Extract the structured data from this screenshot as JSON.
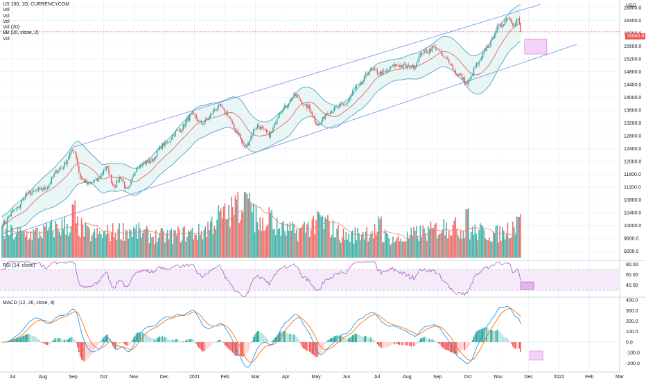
{
  "legend": {
    "symbol": "US 100, 1D, CURRENCYCOM",
    "vol_lines": [
      "Vol",
      "Vol",
      "Vol",
      "Vol (20)",
      "BB (20, close, 2)",
      "Vol"
    ]
  },
  "price_tag": "16045.8",
  "currency": "USD",
  "rsi_label": "RSI (14, close)",
  "macd_label": "MACD (12, 26, close, 9)",
  "colors": {
    "up": "#26a69a",
    "down": "#ef5350",
    "bb_fill": "#e0f2f1",
    "bb_line": "#4aa5b8",
    "channel": "#7f97f5",
    "rsi": "#a35ac8",
    "macd": "#2196f3",
    "signal": "#ff6d00"
  },
  "chart_data": [
    {
      "type": "candlestick",
      "title": "US 100, 1D, CURRENCYCOM",
      "ylabel": "USD",
      "yticks": [
        9200,
        9600,
        10000,
        10400,
        10800,
        11200,
        11600,
        12000,
        12400,
        12800,
        13200,
        13600,
        14000,
        14400,
        14800,
        15200,
        15600,
        16000,
        16400,
        16800
      ],
      "ylim": [
        9000,
        16950
      ],
      "x_ticks": [
        "Jul",
        "Aug",
        "Sep",
        "Oct",
        "Nov",
        "Dec",
        "2021",
        "Feb",
        "Mar",
        "Apr",
        "May",
        "Jun",
        "Jul",
        "Aug",
        "Sep",
        "Oct",
        "Nov",
        "Dec",
        "2022",
        "Feb",
        "Mar"
      ],
      "price_anchors": [
        [
          0,
          10050
        ],
        [
          10,
          10500
        ],
        [
          20,
          11000
        ],
        [
          32,
          11150
        ],
        [
          45,
          11800
        ],
        [
          55,
          12350
        ],
        [
          61,
          11450
        ],
        [
          66,
          11300
        ],
        [
          72,
          11400
        ],
        [
          80,
          11800
        ],
        [
          86,
          11250
        ],
        [
          91,
          11500
        ],
        [
          96,
          11100
        ],
        [
          104,
          11850
        ],
        [
          113,
          12000
        ],
        [
          125,
          12550
        ],
        [
          135,
          12950
        ],
        [
          146,
          13450
        ],
        [
          153,
          13200
        ],
        [
          167,
          13700
        ],
        [
          172,
          13500
        ],
        [
          180,
          12950
        ],
        [
          186,
          12450
        ],
        [
          196,
          13100
        ],
        [
          205,
          12850
        ],
        [
          215,
          13650
        ],
        [
          225,
          14050
        ],
        [
          234,
          13700
        ],
        [
          243,
          13150
        ],
        [
          250,
          13550
        ],
        [
          262,
          13750
        ],
        [
          273,
          14350
        ],
        [
          283,
          14850
        ],
        [
          291,
          14750
        ],
        [
          303,
          15000
        ],
        [
          315,
          14950
        ],
        [
          323,
          15400
        ],
        [
          332,
          15550
        ],
        [
          341,
          15200
        ],
        [
          350,
          14700
        ],
        [
          357,
          14450
        ],
        [
          365,
          15050
        ],
        [
          373,
          15600
        ],
        [
          381,
          16200
        ],
        [
          389,
          16500
        ],
        [
          392,
          16300
        ],
        [
          396,
          16450
        ],
        [
          398,
          16045
        ]
      ],
      "band_half_anchors": [
        [
          0,
          280
        ],
        [
          20,
          450
        ],
        [
          55,
          700
        ],
        [
          70,
          450
        ],
        [
          96,
          420
        ],
        [
          120,
          430
        ],
        [
          146,
          520
        ],
        [
          170,
          430
        ],
        [
          186,
          600
        ],
        [
          205,
          400
        ],
        [
          225,
          520
        ],
        [
          243,
          420
        ],
        [
          265,
          300
        ],
        [
          283,
          450
        ],
        [
          303,
          330
        ],
        [
          323,
          420
        ],
        [
          350,
          500
        ],
        [
          373,
          650
        ],
        [
          392,
          600
        ],
        [
          398,
          580
        ]
      ],
      "channel_upper": {
        "start": {
          "bar": 55,
          "value": 12450
        },
        "end": {
          "bar": 413,
          "value": 16900
        }
      },
      "channel_lower": {
        "start": {
          "bar": 0,
          "value": 9620
        },
        "end": {
          "bar": 441,
          "value": 15650
        }
      },
      "target_box": {
        "bar_from": 401,
        "bar_to": 418,
        "value_from": 15350,
        "value_to": 15820
      }
    },
    {
      "type": "bar",
      "title": "Vol",
      "volume_anchors": [
        [
          0,
          0.42
        ],
        [
          20,
          0.4
        ],
        [
          55,
          0.55
        ],
        [
          70,
          0.38
        ],
        [
          96,
          0.46
        ],
        [
          120,
          0.36
        ],
        [
          150,
          0.42
        ],
        [
          170,
          0.7
        ],
        [
          186,
          0.92
        ],
        [
          200,
          0.55
        ],
        [
          225,
          0.44
        ],
        [
          243,
          0.6
        ],
        [
          265,
          0.36
        ],
        [
          283,
          0.45
        ],
        [
          303,
          0.3
        ],
        [
          323,
          0.42
        ],
        [
          342,
          0.52
        ],
        [
          360,
          0.44
        ],
        [
          380,
          0.4
        ],
        [
          398,
          0.58
        ]
      ],
      "spikes": [
        [
          55,
          0.88
        ],
        [
          186,
          1.0
        ],
        [
          190,
          0.93
        ],
        [
          194,
          0.86
        ],
        [
          206,
          0.8
        ],
        [
          243,
          0.72
        ],
        [
          290,
          0.65
        ],
        [
          340,
          0.62
        ],
        [
          357,
          0.8
        ],
        [
          396,
          0.7
        ]
      ]
    },
    {
      "type": "line",
      "title": "RSI (14, close)",
      "yticks": [
        40,
        60,
        80
      ],
      "ylim": [
        18,
        85
      ],
      "bands": [
        30,
        70
      ],
      "target_box": {
        "bar_from": 398,
        "bar_to": 408,
        "value_from": 32,
        "value_to": 46
      }
    },
    {
      "type": "line+histogram",
      "title": "MACD (12, 26, close, 9)",
      "yticks": [
        -200,
        -100,
        0,
        100,
        200,
        300,
        400
      ],
      "ylim": [
        -250,
        420
      ],
      "target_box": {
        "bar_from": 405,
        "bar_to": 415,
        "value_from": -170,
        "value_to": -85
      }
    }
  ]
}
